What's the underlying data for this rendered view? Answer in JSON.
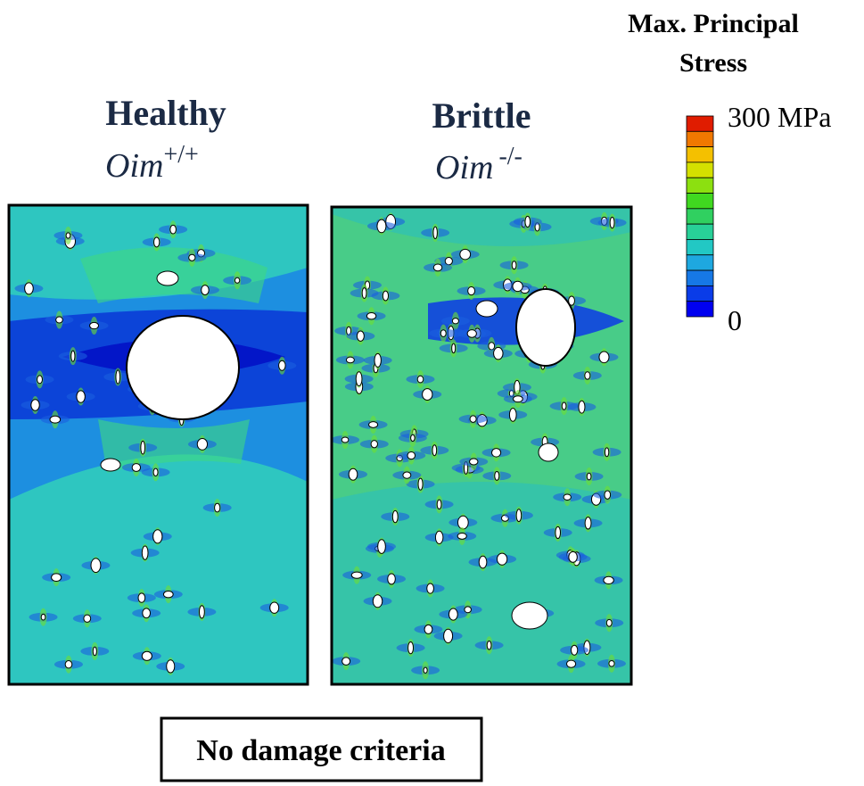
{
  "legend": {
    "title_lines": [
      "Max. Principal",
      "Stress"
    ],
    "max_label": "300 MPa",
    "min_label": "0"
  },
  "panels": [
    {
      "title": "Healthy",
      "genotype": "Oim",
      "superscript": "+/+"
    },
    {
      "title": "Brittle",
      "genotype": "Oim",
      "superscript": "-/-"
    }
  ],
  "caption": "No damage criteria"
}
